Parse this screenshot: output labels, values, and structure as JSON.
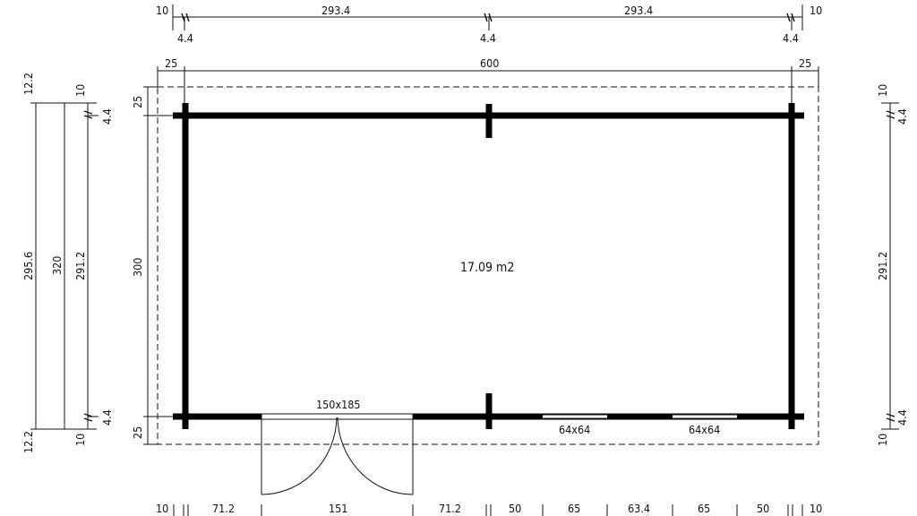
{
  "plan": {
    "area": "17.09 m2",
    "door": "150x185",
    "window_left": "64x64",
    "window_right": "64x64",
    "top_dims": {
      "left_10": "10",
      "mid_left": "293.4",
      "mid_right": "293.4",
      "right_10": "10",
      "small_left": "4.4",
      "small_mid": "4.4",
      "small_right": "4.4",
      "overhang_left": "25",
      "total": "600",
      "overhang_right": "25"
    },
    "left_dims": {
      "top_12": "12.2",
      "top_10": "10",
      "top_44": "4.4",
      "total_inner": "295.6",
      "total_outer": "320",
      "wall_inner": "291.2",
      "bottom_44": "4.4",
      "bottom_12": "12.2",
      "bottom_10": "10",
      "overhang_top": "25",
      "height": "300",
      "overhang_bottom": "25"
    },
    "right_dims": {
      "top_10": "10",
      "top_44": "4.4",
      "wall_inner": "291.2",
      "bottom_44": "4.4",
      "bottom_10": "10"
    },
    "bottom_dims": [
      "10",
      "71.2",
      "151",
      "71.2",
      "50",
      "65",
      "63.4",
      "65",
      "50",
      "10"
    ]
  }
}
